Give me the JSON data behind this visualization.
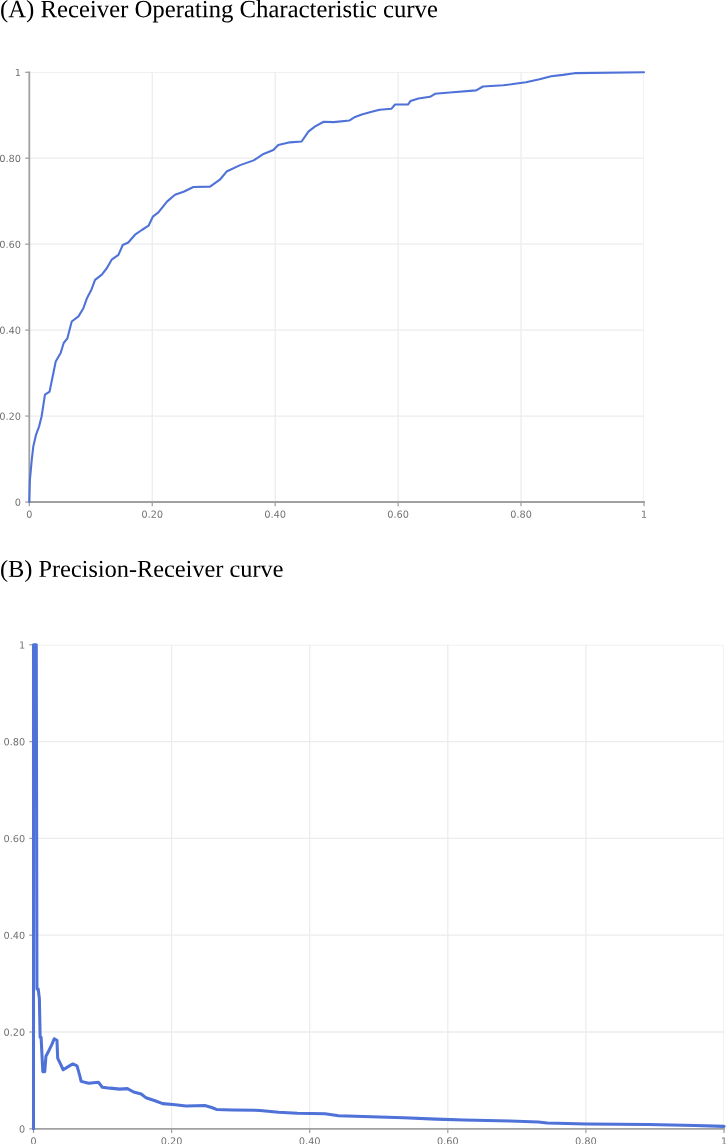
{
  "chart_data": [
    {
      "type": "line",
      "title": "(A) Receiver Operating Characteristic curve",
      "x": [
        0,
        0.001,
        0.004,
        0.0065,
        0.011,
        0.016,
        0.02,
        0.0255,
        0.033,
        0.038,
        0.043,
        0.051,
        0.056,
        0.062,
        0.069,
        0.08,
        0.088,
        0.094,
        0.101,
        0.107,
        0.118,
        0.126,
        0.134,
        0.145,
        0.152,
        0.161,
        0.172,
        0.183,
        0.194,
        0.201,
        0.21,
        0.224,
        0.237,
        0.251,
        0.267,
        0.294,
        0.31,
        0.321,
        0.343,
        0.365,
        0.381,
        0.397,
        0.405,
        0.424,
        0.443,
        0.454,
        0.465,
        0.479,
        0.495,
        0.521,
        0.53,
        0.541,
        0.557,
        0.57,
        0.589,
        0.595,
        0.616,
        0.62,
        0.633,
        0.652,
        0.66,
        0.684,
        0.727,
        0.738,
        0.771,
        0.784,
        0.808,
        0.83,
        0.849,
        0.868,
        0.887,
        1
      ],
      "series": [
        {
          "color": "#4f72d8",
          "values": [
            0,
            0.052,
            0.098,
            0.129,
            0.157,
            0.176,
            0.199,
            0.25,
            0.257,
            0.292,
            0.327,
            0.347,
            0.37,
            0.381,
            0.42,
            0.432,
            0.451,
            0.475,
            0.494,
            0.517,
            0.529,
            0.544,
            0.564,
            0.575,
            0.598,
            0.604,
            0.622,
            0.633,
            0.643,
            0.664,
            0.674,
            0.699,
            0.715,
            0.722,
            0.733,
            0.734,
            0.75,
            0.769,
            0.784,
            0.795,
            0.81,
            0.819,
            0.831,
            0.837,
            0.839,
            0.862,
            0.874,
            0.885,
            0.884,
            0.888,
            0.896,
            0.902,
            0.908,
            0.913,
            0.915,
            0.925,
            0.925,
            0.933,
            0.939,
            0.943,
            0.95,
            0.953,
            0.958,
            0.967,
            0.97,
            0.972,
            0.977,
            0.984,
            0.991,
            0.994,
            0.998,
            1
          ]
        }
      ],
      "xlim": [
        0,
        1
      ],
      "ylim": [
        0,
        1
      ],
      "xticks": [
        0,
        {
          "value": 0.2,
          "label": "0.20"
        },
        {
          "value": 0.4,
          "label": "0.40"
        },
        {
          "value": 0.6,
          "label": "0.60"
        },
        {
          "value": 0.8,
          "label": "0.80"
        },
        1
      ],
      "yticks": [
        0,
        {
          "value": 0.2,
          "label": "0.20"
        },
        {
          "value": 0.4,
          "label": "0.40"
        },
        {
          "value": 0.6,
          "label": "0.60"
        },
        {
          "value": 0.8,
          "label": "0.80"
        },
        1
      ],
      "grid": true
    },
    {
      "type": "line",
      "title": "(B) Precision-Receiver curve",
      "x": [
        0,
        0,
        0.001,
        0.004,
        0.005,
        0.0068,
        0.0085,
        0.0096,
        0.011,
        0.0135,
        0.0163,
        0.018,
        0.021,
        0.0265,
        0.03,
        0.034,
        0.035,
        0.039,
        0.043,
        0.052,
        0.057,
        0.063,
        0.067,
        0.069,
        0.08,
        0.094,
        0.0997,
        0.111,
        0.125,
        0.136,
        0.145,
        0.156,
        0.163,
        0.176,
        0.187,
        0.202,
        0.221,
        0.248,
        0.258,
        0.265,
        0.288,
        0.328,
        0.355,
        0.382,
        0.422,
        0.442,
        0.489,
        0.536,
        0.583,
        0.623,
        0.69,
        0.731,
        0.744,
        0.801,
        0.891,
        0.958,
        1
      ],
      "series": [
        {
          "color": "#4f72d8",
          "values": [
            0,
            1,
            1,
            1,
            0.289,
            0.289,
            0.269,
            0.189,
            0.189,
            0.118,
            0.118,
            0.15,
            0.158,
            0.174,
            0.186,
            0.183,
            0.146,
            0.134,
            0.122,
            0.13,
            0.134,
            0.13,
            0.11,
            0.098,
            0.094,
            0.096,
            0.086,
            0.084,
            0.082,
            0.083,
            0.076,
            0.072,
            0.064,
            0.058,
            0.052,
            0.05,
            0.047,
            0.048,
            0.044,
            0.04,
            0.039,
            0.038,
            0.034,
            0.032,
            0.031,
            0.027,
            0.025,
            0.023,
            0.02,
            0.018,
            0.016,
            0.014,
            0.012,
            0.01,
            0.009,
            0.007,
            0.005
          ]
        }
      ],
      "xlim": [
        0,
        1
      ],
      "ylim": [
        0,
        1
      ],
      "xticks": [
        0,
        {
          "value": 0.2,
          "label": "0.20"
        },
        {
          "value": 0.4,
          "label": "0.40"
        },
        {
          "value": 0.6,
          "label": "0.60"
        },
        {
          "value": 0.8,
          "label": "0.80"
        },
        1
      ],
      "yticks": [
        0,
        {
          "value": 0.2,
          "label": "0.20"
        },
        {
          "value": 0.4,
          "label": "0.40"
        },
        {
          "value": 0.6,
          "label": "0.60"
        },
        {
          "value": 0.8,
          "label": "0.80"
        },
        1
      ],
      "grid": true
    }
  ]
}
